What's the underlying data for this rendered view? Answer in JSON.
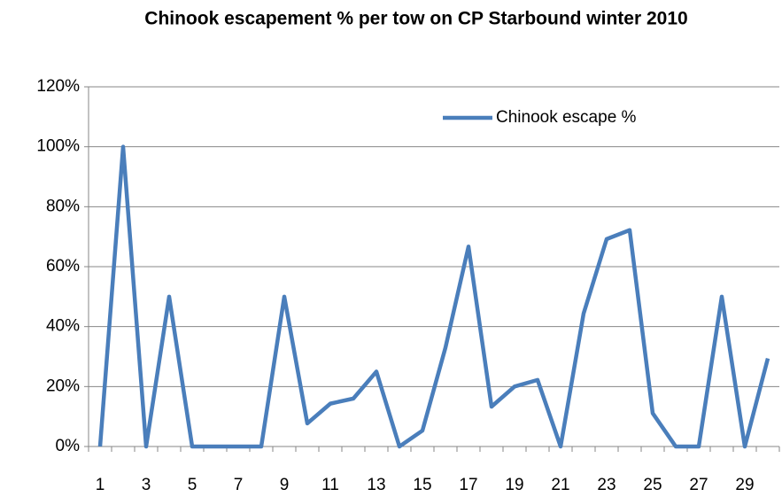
{
  "chart_data": {
    "type": "line",
    "title": "Chinook escapement % per tow on CP Starbound winter 2010",
    "categories": [
      "1",
      null,
      "3",
      null,
      "5",
      null,
      "7",
      null,
      "9",
      null,
      "11",
      null,
      "13",
      null,
      "15",
      null,
      "17",
      null,
      "19",
      null,
      "21",
      null,
      "23",
      null,
      "25",
      null,
      "27",
      null,
      "29",
      null
    ],
    "series": [
      {
        "name": "Chinook escape %",
        "color": "#4a7ebb",
        "values": [
          0,
          100,
          0,
          50,
          0,
          0,
          0,
          0,
          50,
          7.7,
          14.3,
          16,
          25,
          0,
          5.3,
          33,
          66.7,
          13.3,
          20,
          22.2,
          0,
          44.4,
          69.2,
          72.2,
          11.1,
          0,
          0,
          50,
          0,
          29.4
        ]
      }
    ],
    "ylim": [
      0,
      120
    ],
    "yticks": [
      {
        "value": 0,
        "label": "0%"
      },
      {
        "value": 20,
        "label": "20%"
      },
      {
        "value": 40,
        "label": "40%"
      },
      {
        "value": 60,
        "label": "60%"
      },
      {
        "value": 80,
        "label": "80%"
      },
      {
        "value": 100,
        "label": "100%"
      },
      {
        "value": 120,
        "label": "120%"
      }
    ],
    "grid": true,
    "legend": "top-right"
  }
}
